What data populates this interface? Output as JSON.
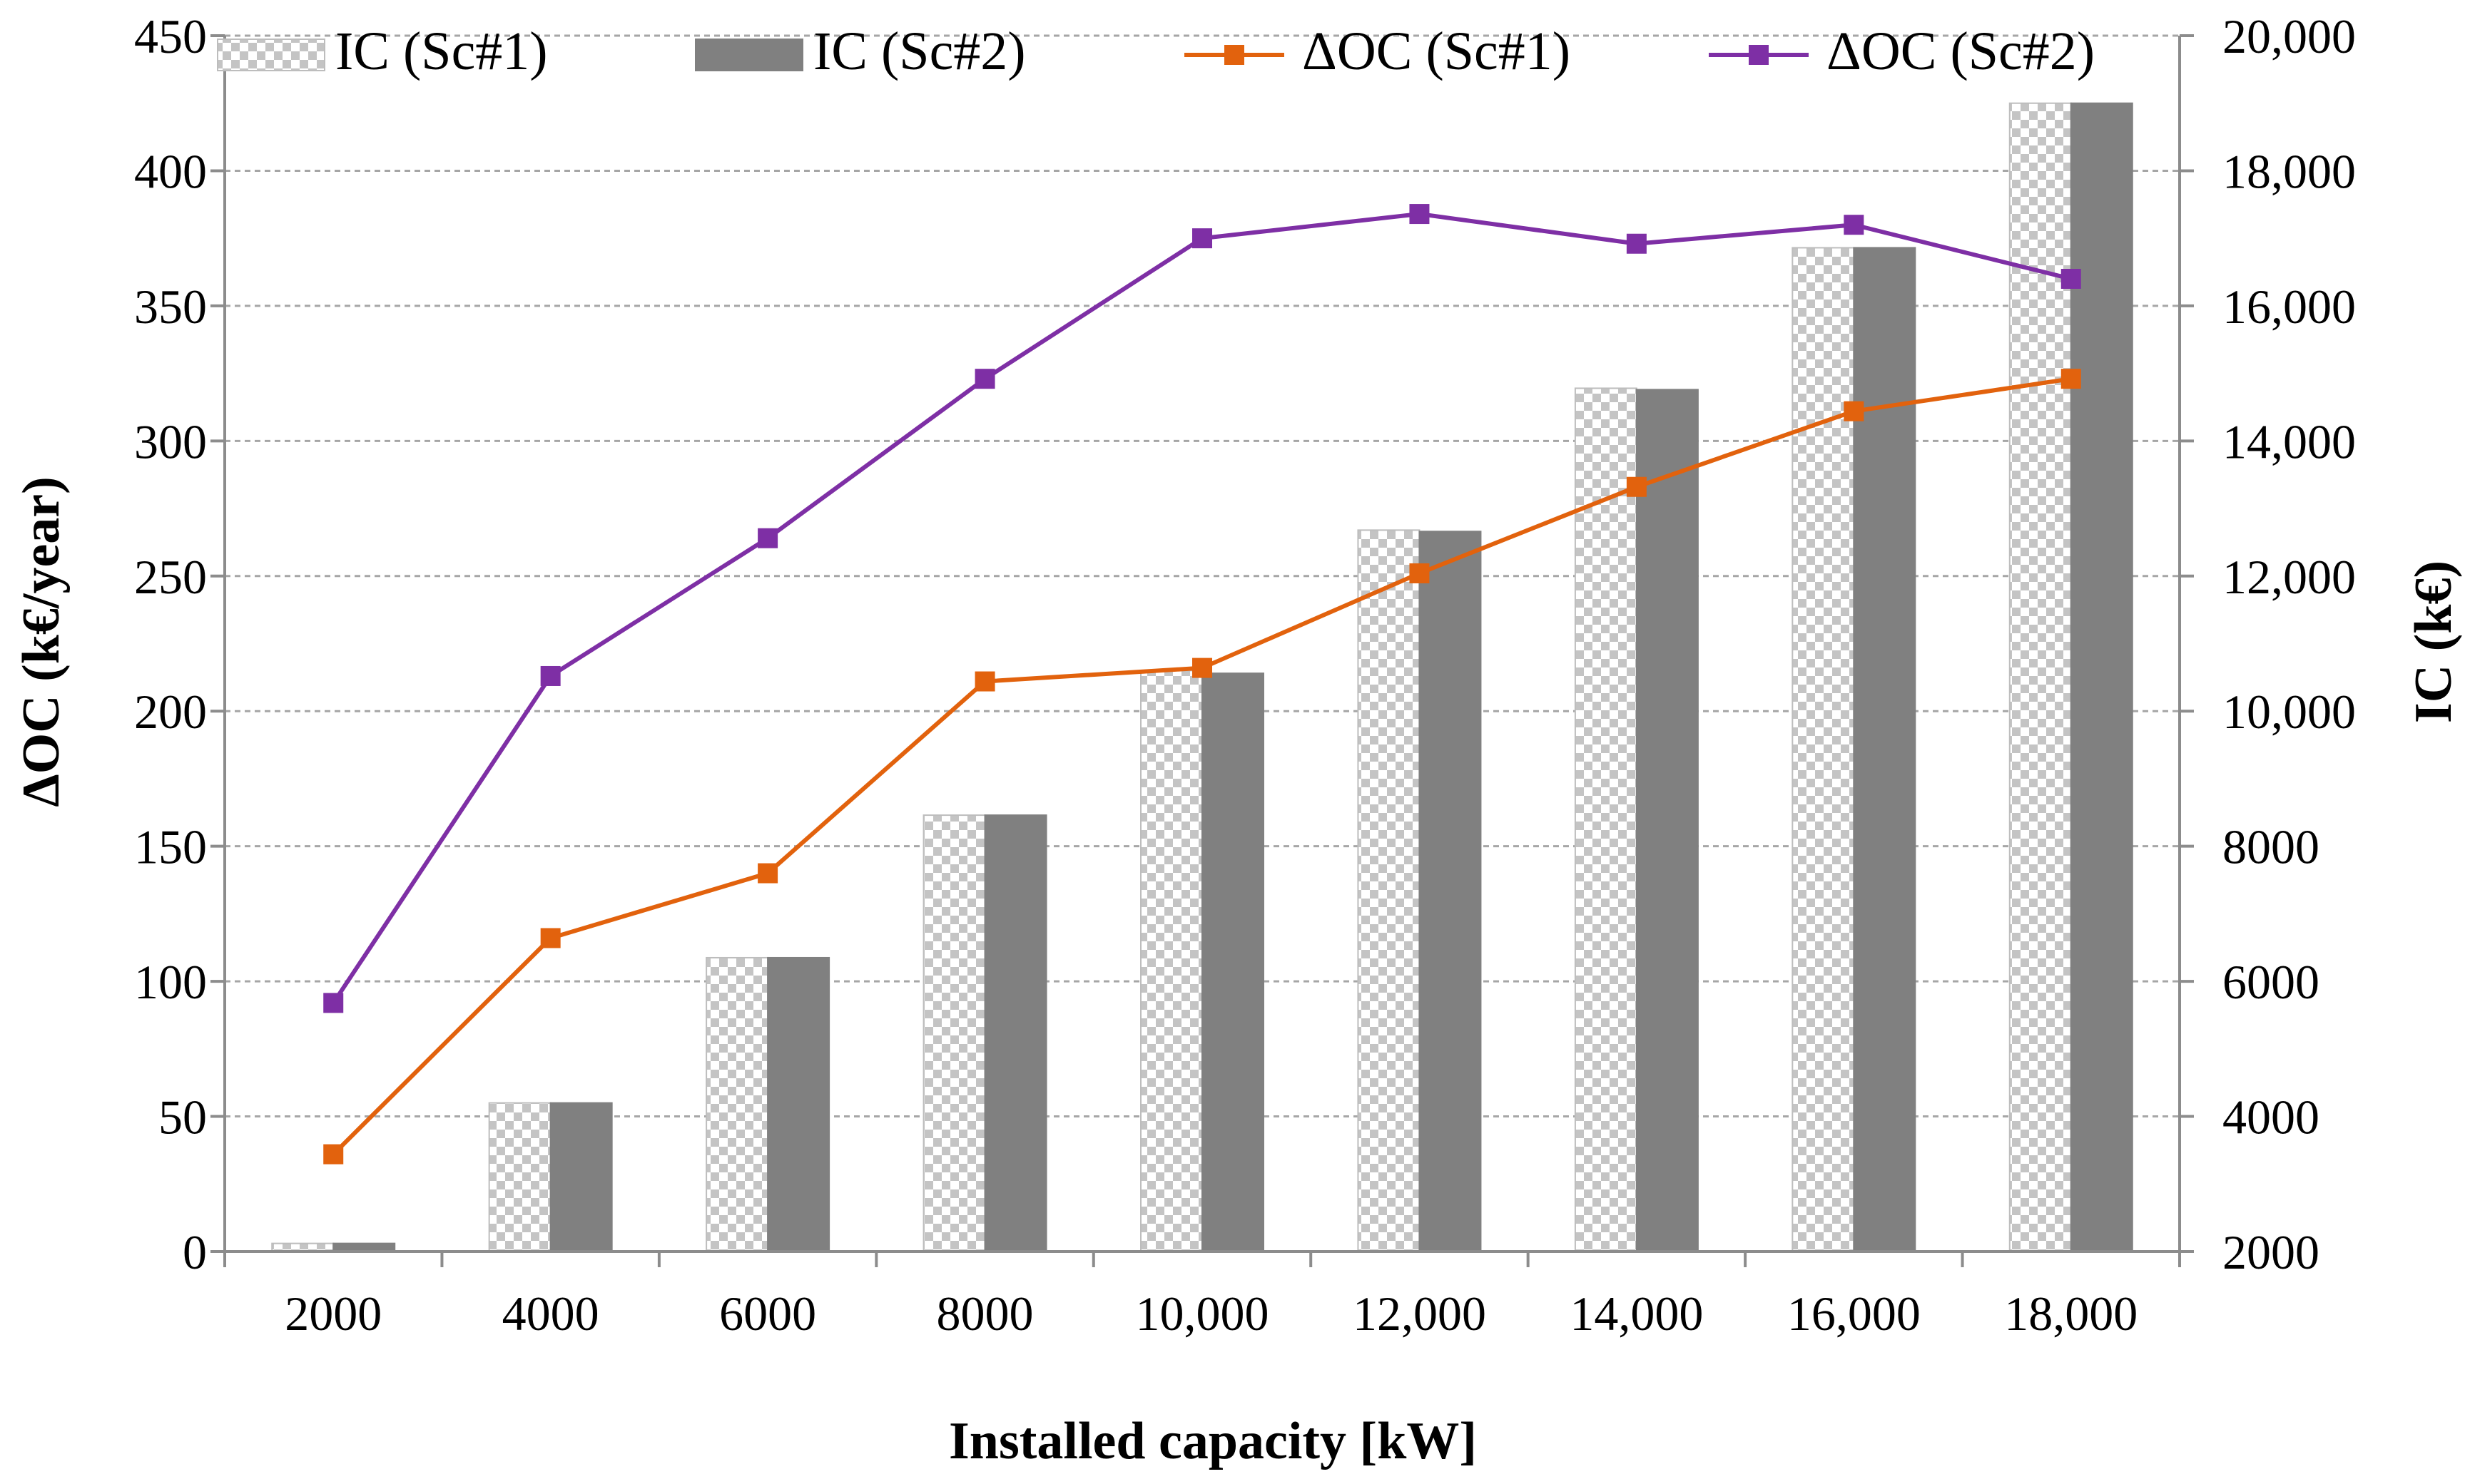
{
  "chart_data": {
    "type": "bar",
    "title": "",
    "xlabel": "Installed capacity [kW]",
    "ylabel_left": "ΔOC (k€/year)",
    "ylabel_right": "IC  (k€)",
    "categories": [
      "2000",
      "4000",
      "6000",
      "8000",
      "10,000",
      "12,000",
      "14,000",
      "16,000",
      "18,000"
    ],
    "left_axis": {
      "ylim": [
        0,
        450
      ],
      "ticks": [
        0,
        50,
        100,
        150,
        200,
        250,
        300,
        350,
        400,
        450
      ],
      "tick_labels": [
        "0",
        "50",
        "100",
        "150",
        "200",
        "250",
        "300",
        "350",
        "400",
        "450"
      ]
    },
    "right_axis": {
      "ylim": [
        2000,
        20000
      ],
      "ticks": [
        2000,
        4000,
        6000,
        8000,
        10000,
        12000,
        14000,
        16000,
        18000,
        20000
      ],
      "tick_labels": [
        "2000",
        "4000",
        "6000",
        "8000",
        "10,000",
        "12,000",
        "14,000",
        "16,000",
        "18,000",
        "20,000"
      ]
    },
    "grid": true,
    "legend_position": "top",
    "series": [
      {
        "name": "IC (Sc#1)",
        "kind": "bar",
        "axis": "right",
        "style": "checkered",
        "color": "#c8c8c8",
        "values": [
          2120,
          4200,
          6350,
          8460,
          10600,
          12680,
          14780,
          16860,
          19000
        ]
      },
      {
        "name": "IC (Sc#2)",
        "kind": "bar",
        "axis": "right",
        "style": "solid",
        "color": "#808080",
        "values": [
          2120,
          4200,
          6350,
          8460,
          10560,
          12660,
          14760,
          16860,
          19000
        ]
      },
      {
        "name": "ΔOC (Sc#1)",
        "kind": "line",
        "axis": "left",
        "color": "#e2620d",
        "values": [
          36,
          116,
          140,
          211,
          216,
          251,
          283,
          311,
          323
        ]
      },
      {
        "name": "ΔOC (Sc#2)",
        "kind": "line",
        "axis": "left",
        "color": "#7e2fa5",
        "values": [
          92,
          213,
          264,
          323,
          375,
          384,
          373,
          380,
          360
        ]
      }
    ]
  }
}
